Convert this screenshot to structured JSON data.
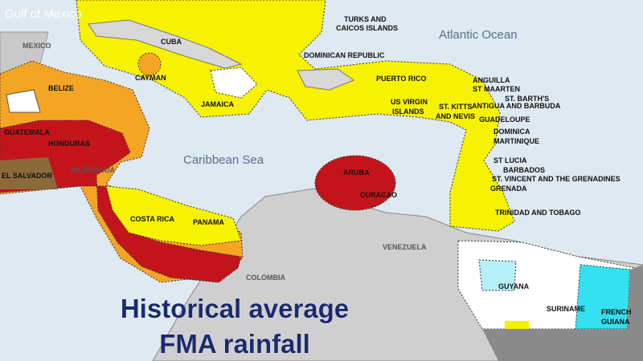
{
  "map": {
    "title_lines": [
      "Historical average",
      "FMA rainfall"
    ],
    "water_labels": [
      "Gulf of Mexico",
      "Atlantic Ocean",
      "Caribbean Sea"
    ],
    "labels": [
      "MEXICO",
      "TURKS AND",
      "CAICOS ISLANDS",
      "CUBA",
      "CAYMAN",
      "DOMINICAN REPUBLIC",
      "PUERTO RICO",
      "ANGUILLA",
      "ST MAARTEN",
      "ST. BARTH'S",
      "ANTIGUA AND BARBUDA",
      "JAMAICA",
      "US VIRGIN",
      "ISLANDS",
      "ST. KITTS",
      "AND NEVIS",
      "GUADELOUPE",
      "DOMINICA",
      "MARTINIQUE",
      "BELIZE",
      "GUATEMALA",
      "HONDURAS",
      "EL SALVADOR",
      "NICARAGUA",
      "ST LUCIA",
      "BARBADOS",
      "ST. VINCENT AND THE GRENADINES",
      "GRENADA",
      "ARUBA",
      "CURACAO",
      "COSTA RICA",
      "PANAMA",
      "TRINIDAD AND TOBAGO",
      "VENEZUELA",
      "COLOMBIA",
      "GUYANA",
      "SURINAME",
      "FRENCH",
      "GUIANA"
    ]
  }
}
